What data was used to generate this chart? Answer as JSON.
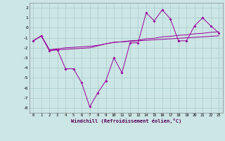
{
  "x": [
    0,
    1,
    2,
    3,
    4,
    5,
    6,
    7,
    8,
    9,
    10,
    11,
    12,
    13,
    14,
    15,
    16,
    17,
    18,
    19,
    20,
    21,
    22,
    23
  ],
  "line1": [
    -1.3,
    -0.8,
    -2.3,
    -2.2,
    -4.1,
    -4.1,
    -5.5,
    -7.9,
    -6.5,
    -5.3,
    -3.0,
    -4.5,
    -1.5,
    -1.5,
    1.5,
    0.7,
    1.8,
    0.9,
    -1.3,
    -1.3,
    0.2,
    1.0,
    0.2,
    -0.5
  ],
  "line2": [
    -1.3,
    -0.8,
    -2.2,
    -2.2,
    -2.15,
    -2.1,
    -2.05,
    -2.0,
    -1.8,
    -1.6,
    -1.45,
    -1.4,
    -1.35,
    -1.3,
    -1.25,
    -1.2,
    -1.15,
    -1.1,
    -1.05,
    -1.0,
    -0.95,
    -0.9,
    -0.85,
    -0.8
  ],
  "line3": [
    -1.3,
    -0.8,
    -2.2,
    -2.1,
    -2.0,
    -1.95,
    -1.9,
    -1.85,
    -1.75,
    -1.6,
    -1.45,
    -1.4,
    -1.3,
    -1.25,
    -1.1,
    -1.05,
    -0.9,
    -0.85,
    -0.75,
    -0.7,
    -0.6,
    -0.55,
    -0.45,
    -0.4
  ],
  "bg_color": "#cce5e5",
  "grid_color": "#aacccc",
  "line_color": "#990099",
  "ylabel_vals": [
    2,
    1,
    0,
    -1,
    -2,
    -3,
    -4,
    -5,
    -6,
    -7,
    -8
  ],
  "ylim": [
    -8.5,
    2.5
  ],
  "xlim": [
    -0.5,
    23.5
  ],
  "xlabel": "Windchill (Refroidissement éolien,°C)"
}
